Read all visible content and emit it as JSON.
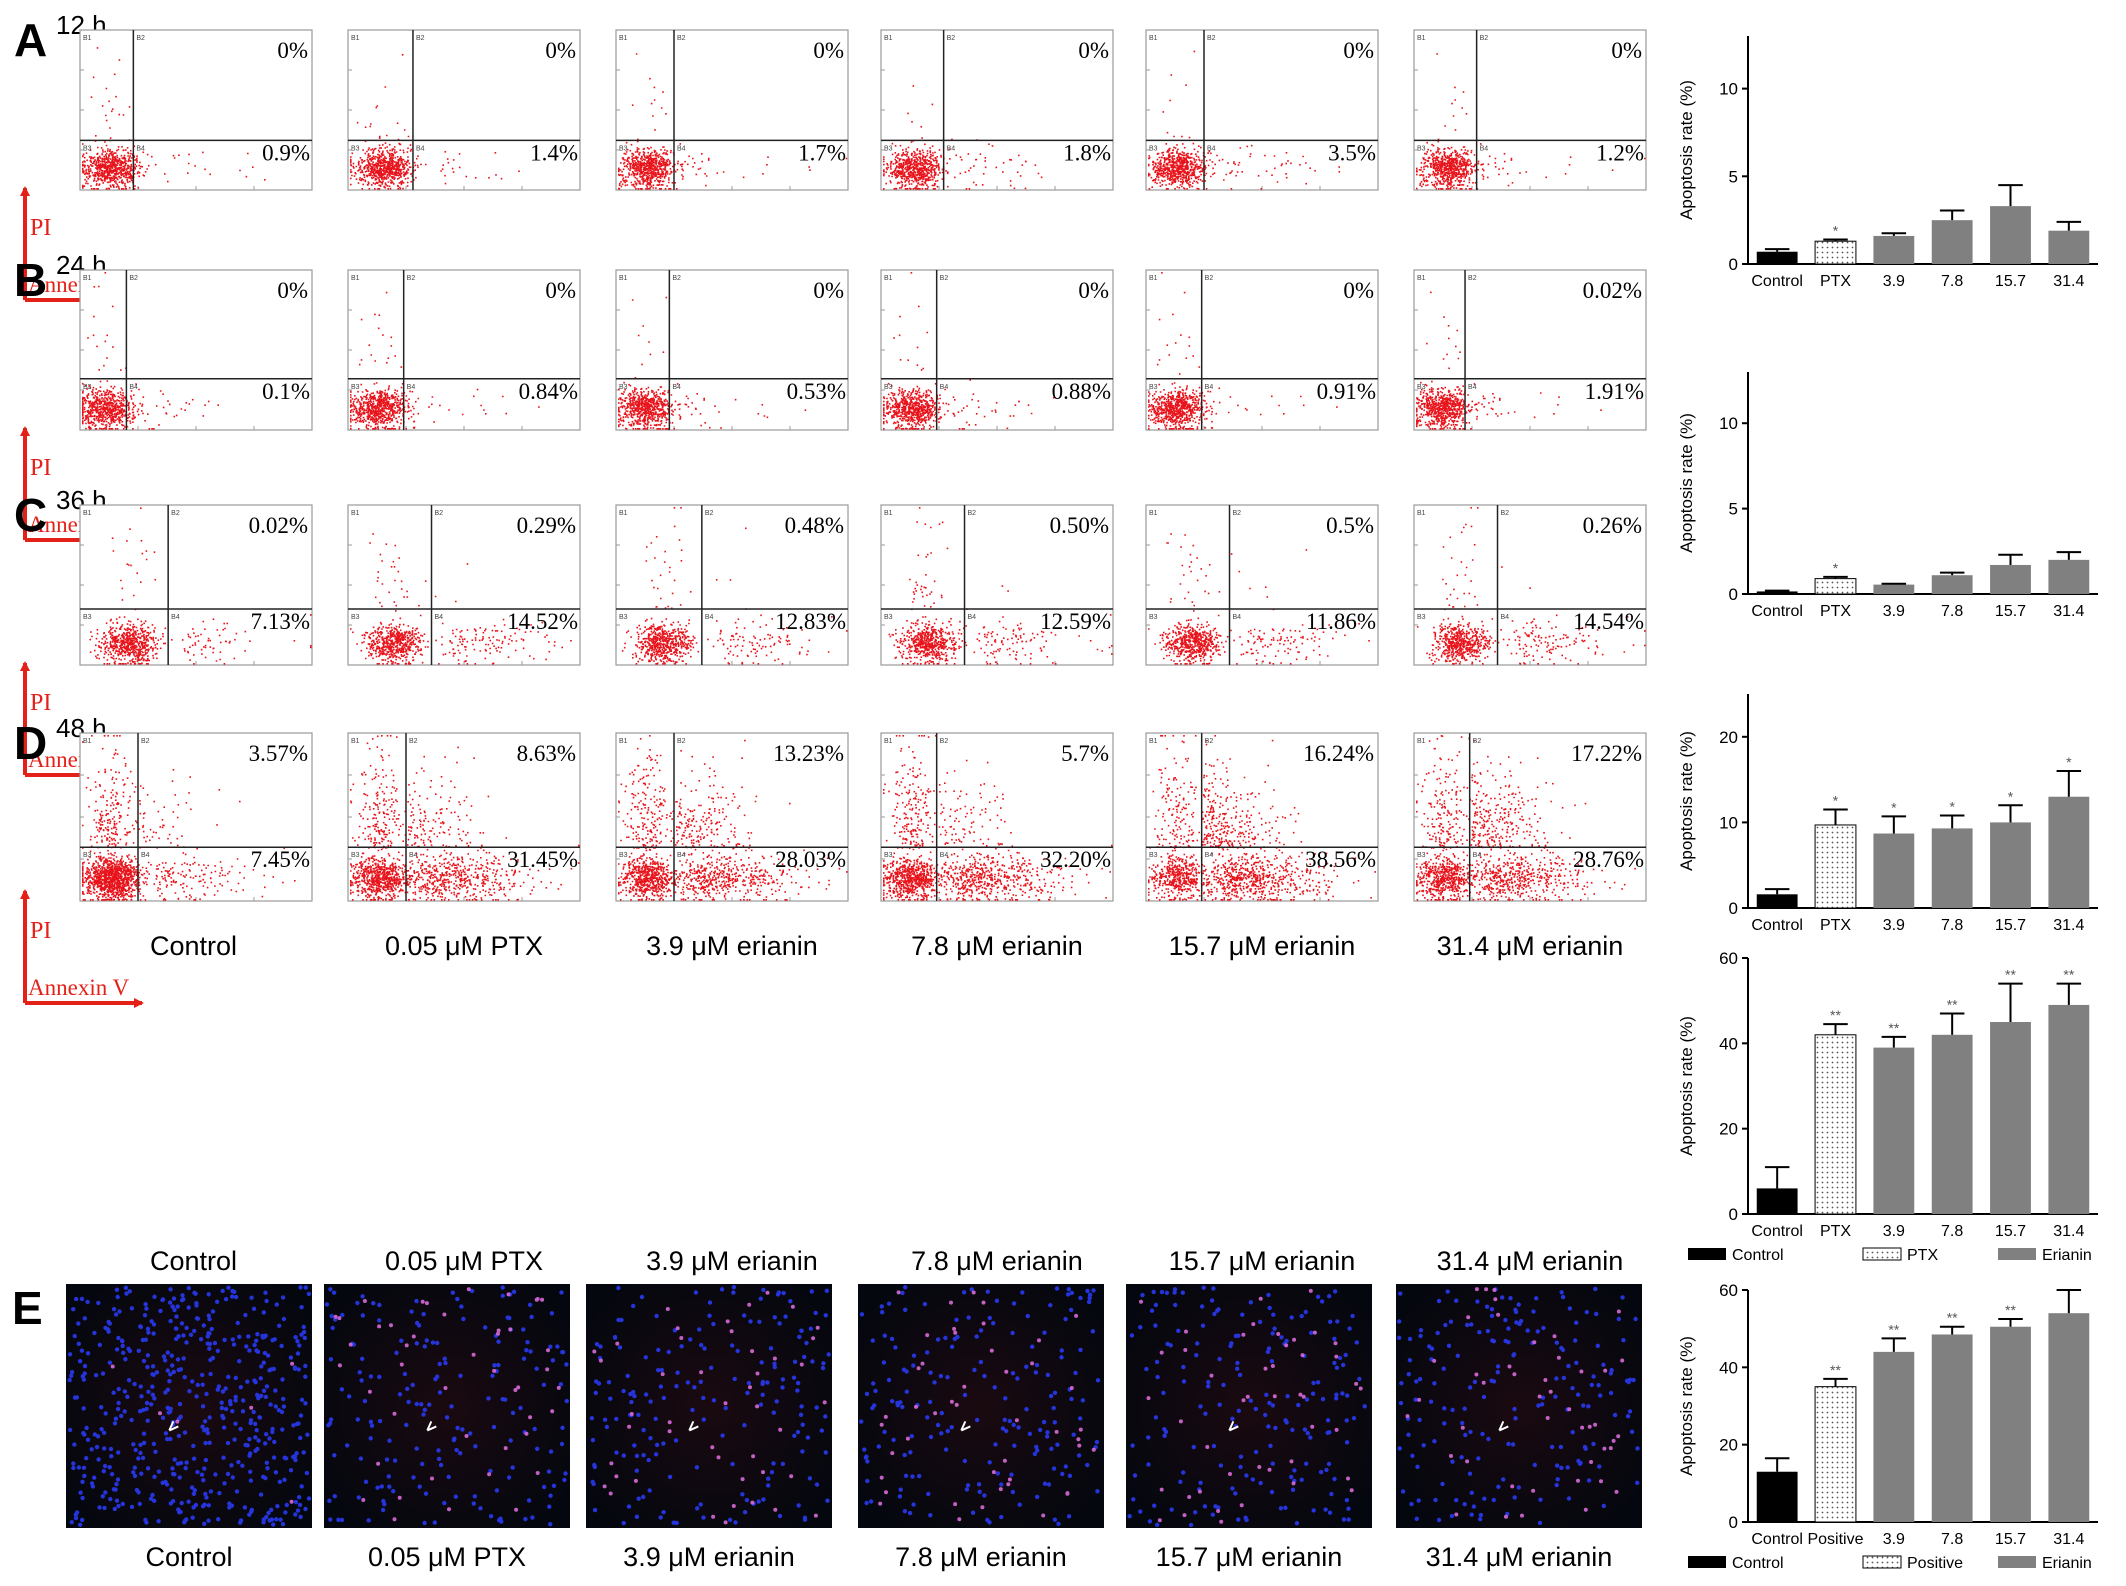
{
  "colors": {
    "dot_red": "#e8141c",
    "axis_arrow": "#e32119",
    "bar_control": "#000000",
    "bar_erianin": "#808080",
    "bar_dotted_bg": "#ffffff",
    "fluor_bg": "#05070f",
    "fluor_blue": "#2a3cff"
  },
  "axes_arrow_labels": {
    "y": "PI",
    "x": "Annexin V"
  },
  "quadrant_labels": [
    "B1",
    "B2",
    "B3",
    "B4"
  ],
  "rows": [
    {
      "letter": "A",
      "time": "12 h",
      "panels": [
        {
          "caption": "Control",
          "upper_right": "0%",
          "lower_right": "0.9%"
        },
        {
          "caption": "0.05 μM PTX",
          "upper_right": "0%",
          "lower_right": "1.4%"
        },
        {
          "caption": "3.9 μM erianin",
          "upper_right": "0%",
          "lower_right": "1.7%"
        },
        {
          "caption": "7.8 μM erianin",
          "upper_right": "0%",
          "lower_right": "1.8%"
        },
        {
          "caption": "15.7 μM erianin",
          "upper_right": "0%",
          "lower_right": "3.5%"
        },
        {
          "caption": "31.4 μM erianin",
          "upper_right": "0%",
          "lower_right": "1.2%"
        }
      ]
    },
    {
      "letter": "B",
      "time": "24 h",
      "panels": [
        {
          "caption": "Control",
          "upper_right": "0%",
          "lower_right": "0.1%"
        },
        {
          "caption": "0.05 μM PTX",
          "upper_right": "0%",
          "lower_right": "0.84%"
        },
        {
          "caption": "3.9 μM erianin",
          "upper_right": "0%",
          "lower_right": "0.53%"
        },
        {
          "caption": "7.8 μM erianin",
          "upper_right": "0%",
          "lower_right": "0.88%"
        },
        {
          "caption": "15.7 μM erianin",
          "upper_right": "0%",
          "lower_right": "0.91%"
        },
        {
          "caption": "31.4 μM erianin",
          "upper_right": "0.02%",
          "lower_right": "1.91%"
        }
      ]
    },
    {
      "letter": "C",
      "time": "36 h",
      "panels": [
        {
          "caption": "Control",
          "upper_right": "0.02%",
          "lower_right": "7.13%"
        },
        {
          "caption": "0.05 μM PTX",
          "upper_right": "0.29%",
          "lower_right": "14.52%"
        },
        {
          "caption": "3.9 μM erianin",
          "upper_right": "0.48%",
          "lower_right": "12.83%"
        },
        {
          "caption": "7.8 μM erianin",
          "upper_right": "0.50%",
          "lower_right": "12.59%"
        },
        {
          "caption": "15.7 μM erianin",
          "upper_right": "0.5%",
          "lower_right": "11.86%"
        },
        {
          "caption": "31.4 μM erianin",
          "upper_right": "0.26%",
          "lower_right": "14.54%"
        }
      ]
    },
    {
      "letter": "D",
      "time": "48 h",
      "panels": [
        {
          "caption": "Control",
          "upper_right": "3.57%",
          "lower_right": "7.45%"
        },
        {
          "caption": "0.05 μM PTX",
          "upper_right": "8.63%",
          "lower_right": "31.45%"
        },
        {
          "caption": "3.9 μM erianin",
          "upper_right": "13.23%",
          "lower_right": "28.03%"
        },
        {
          "caption": "7.8 μM erianin",
          "upper_right": "5.7%",
          "lower_right": "32.20%"
        },
        {
          "caption": "15.7 μM erianin",
          "upper_right": "16.24%",
          "lower_right": "38.56%"
        },
        {
          "caption": "31.4 μM erianin",
          "upper_right": "17.22%",
          "lower_right": "28.76%"
        }
      ]
    }
  ],
  "row_e": {
    "letter": "E",
    "captions": [
      "Control",
      "0.05 μM PTX",
      "3.9 μM erianin",
      "7.8 μM erianin",
      "15.7 μM erianin",
      "31.4 μM erianin"
    ]
  },
  "chart_data": [
    {
      "type": "bar",
      "panel": "A",
      "categories": [
        "Control",
        "PTX",
        "3.9",
        "7.8",
        "15.7",
        "31.4"
      ],
      "values": [
        0.7,
        1.3,
        1.6,
        2.5,
        3.3,
        1.9
      ],
      "errors": [
        0.15,
        0.1,
        0.15,
        0.55,
        1.2,
        0.5
      ],
      "significance": [
        "",
        "*",
        "",
        "",
        "",
        ""
      ],
      "ylabel": "Apoptosis rate (%)",
      "ylim": [
        0,
        13
      ],
      "yticks": [
        0,
        5,
        10
      ]
    },
    {
      "type": "bar",
      "panel": "B",
      "categories": [
        "Control",
        "PTX",
        "3.9",
        "7.8",
        "15.7",
        "31.4"
      ],
      "values": [
        0.15,
        0.9,
        0.55,
        1.1,
        1.7,
        2.0
      ],
      "errors": [
        0.05,
        0.1,
        0.05,
        0.15,
        0.6,
        0.45
      ],
      "significance": [
        "",
        "*",
        "",
        "",
        "",
        ""
      ],
      "ylabel": "Apoptosis rate (%)",
      "ylim": [
        0,
        13
      ],
      "yticks": [
        0,
        5,
        10
      ]
    },
    {
      "type": "bar",
      "panel": "C",
      "categories": [
        "Control",
        "PTX",
        "3.9",
        "7.8",
        "15.7",
        "31.4"
      ],
      "values": [
        1.6,
        9.7,
        8.7,
        9.3,
        10.0,
        13.0
      ],
      "errors": [
        0.6,
        1.8,
        2.0,
        1.5,
        2.0,
        3.0
      ],
      "significance": [
        "",
        "*",
        "*",
        "*",
        "*",
        "*"
      ],
      "ylabel": "Apoptosis rate (%)",
      "ylim": [
        0,
        25
      ],
      "yticks": [
        0,
        10,
        20
      ]
    },
    {
      "type": "bar",
      "panel": "D",
      "categories": [
        "Control",
        "PTX",
        "3.9",
        "7.8",
        "15.7",
        "31.4"
      ],
      "values": [
        6,
        42,
        39,
        42,
        45,
        49
      ],
      "errors": [
        5,
        2.5,
        2.5,
        5,
        9,
        5
      ],
      "significance": [
        "",
        "**",
        "**",
        "**",
        "**",
        "**"
      ],
      "ylabel": "Apoptosis rate (%)",
      "ylim": [
        0,
        60
      ],
      "yticks": [
        0,
        20,
        40,
        60
      ],
      "legend": [
        "Control",
        "PTX",
        "Erianin"
      ]
    },
    {
      "type": "bar",
      "panel": "E",
      "categories": [
        "Control",
        "Positive",
        "3.9",
        "7.8",
        "15.7",
        "31.4"
      ],
      "values": [
        13,
        35,
        44,
        48.5,
        50.5,
        54
      ],
      "errors": [
        3.5,
        2,
        3.5,
        2,
        2,
        6
      ],
      "significance": [
        "",
        "**",
        "**",
        "**",
        "**",
        ""
      ],
      "ylabel": "Apoptosis rate (%)",
      "ylim": [
        0,
        60
      ],
      "yticks": [
        0,
        20,
        40,
        60
      ],
      "legend": [
        "Control",
        "Positive",
        "Erianin"
      ]
    }
  ]
}
